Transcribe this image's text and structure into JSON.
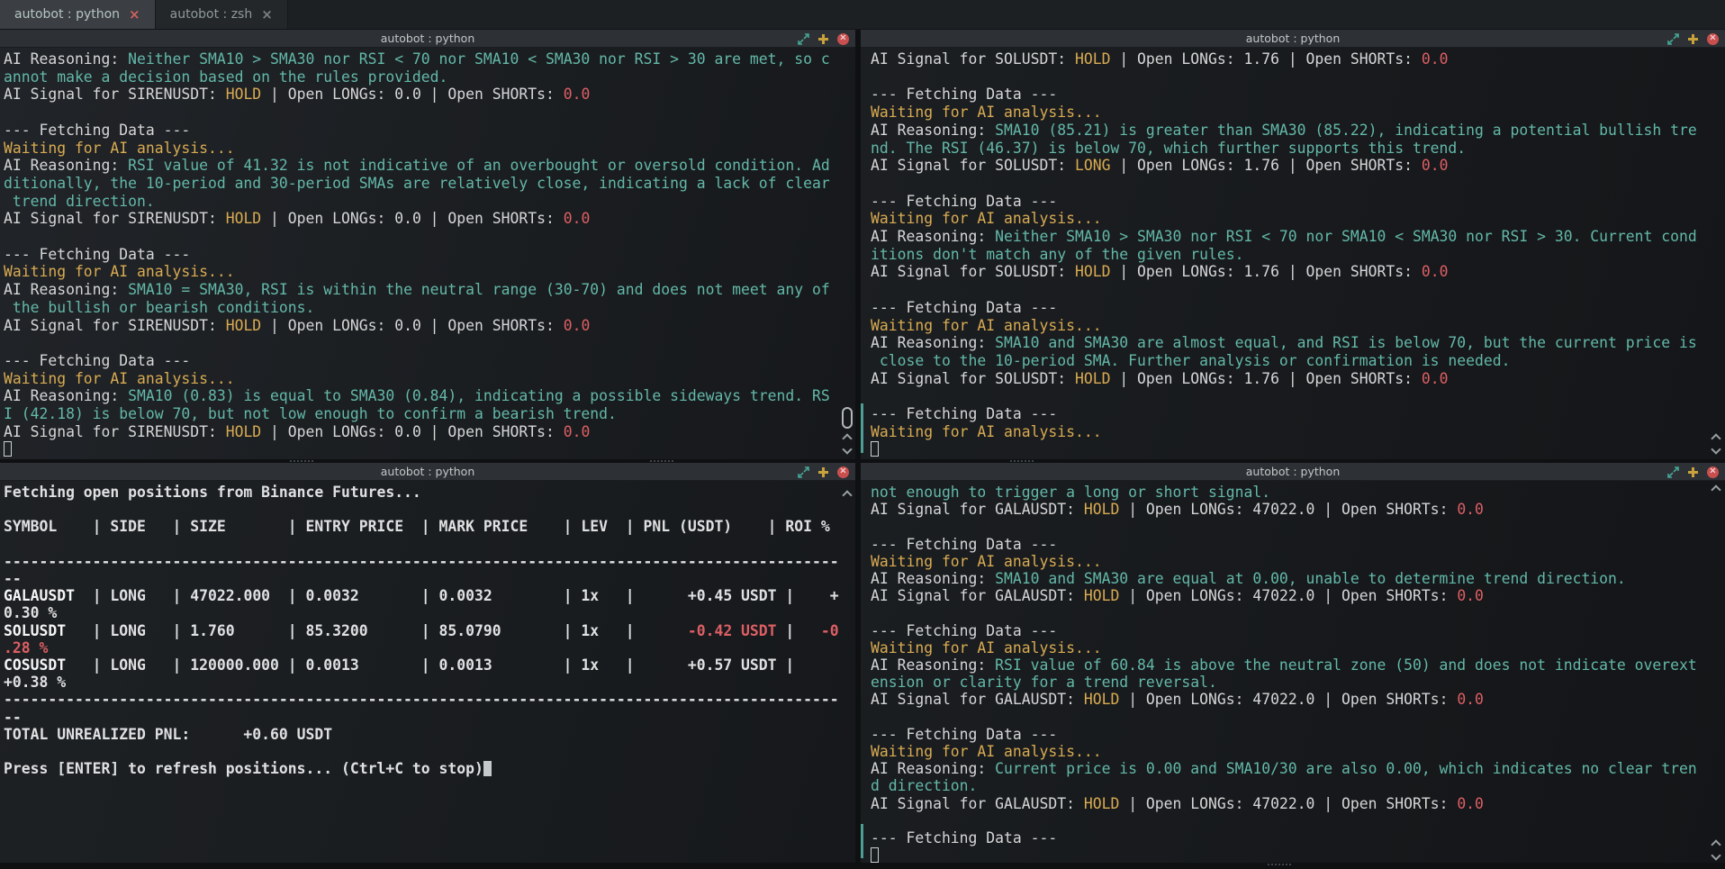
{
  "colors": {
    "teal": "#63b8a9",
    "gold": "#d9ab52",
    "red": "#dd5f64",
    "default_text": "#d5d6d6",
    "bold_text": "#dfe0e1",
    "titlebar_bg": "#2d3034",
    "tab_active_bg": "#3b3f43",
    "close_button": "#c94f4f",
    "plus_icon": "#c9a23b",
    "maximize_icon": "#46a596"
  },
  "tabs": [
    {
      "label": "autobot : python",
      "close": "×",
      "active": true
    },
    {
      "label": "autobot : zsh",
      "close": "×",
      "active": false
    }
  ],
  "panes": {
    "top_left": {
      "title": "autobot : python",
      "lines": [
        [
          {
            "t": "AI Reasoning: ",
            "c": "fg"
          },
          {
            "t": "Neither SMA10 > SMA30 nor RSI < 70 nor SMA10 < SMA30 nor RSI > 30 are met, so c",
            "c": "tl"
          }
        ],
        [
          {
            "t": "annot make a decision based on the rules provided.",
            "c": "tl"
          }
        ],
        [
          {
            "t": "AI Signal for SIRENUSDT: ",
            "c": "fg"
          },
          {
            "t": "HOLD",
            "c": "yl"
          },
          {
            "t": " | Open LONGs: 0.0 | Open SHORTs: ",
            "c": "fg"
          },
          {
            "t": "0.0",
            "c": "rd"
          }
        ],
        [],
        [
          {
            "t": "--- Fetching Data ---",
            "c": "fg"
          }
        ],
        [
          {
            "t": "Waiting for AI analysis...",
            "c": "yl"
          }
        ],
        [
          {
            "t": "AI Reasoning: ",
            "c": "fg"
          },
          {
            "t": "RSI value of 41.32 is not indicative of an overbought or oversold condition. Ad",
            "c": "tl"
          }
        ],
        [
          {
            "t": "ditionally, the 10-period and 30-period SMAs are relatively close, indicating a lack of clear",
            "c": "tl"
          }
        ],
        [
          {
            "t": " trend direction.",
            "c": "tl"
          }
        ],
        [
          {
            "t": "AI Signal for SIRENUSDT: ",
            "c": "fg"
          },
          {
            "t": "HOLD",
            "c": "yl"
          },
          {
            "t": " | Open LONGs: 0.0 | Open SHORTs: ",
            "c": "fg"
          },
          {
            "t": "0.0",
            "c": "rd"
          }
        ],
        [],
        [
          {
            "t": "--- Fetching Data ---",
            "c": "fg"
          }
        ],
        [
          {
            "t": "Waiting for AI analysis...",
            "c": "yl"
          }
        ],
        [
          {
            "t": "AI Reasoning: ",
            "c": "fg"
          },
          {
            "t": "SMA10 = SMA30, RSI is within the neutral range (30-70) and does not meet any of",
            "c": "tl"
          }
        ],
        [
          {
            "t": " the bullish or bearish conditions.",
            "c": "tl"
          }
        ],
        [
          {
            "t": "AI Signal for SIRENUSDT: ",
            "c": "fg"
          },
          {
            "t": "HOLD",
            "c": "yl"
          },
          {
            "t": " | Open LONGs: 0.0 | Open SHORTs: ",
            "c": "fg"
          },
          {
            "t": "0.0",
            "c": "rd"
          }
        ],
        [],
        [
          {
            "t": "--- Fetching Data ---",
            "c": "fg"
          }
        ],
        [
          {
            "t": "Waiting for AI analysis...",
            "c": "yl"
          }
        ],
        [
          {
            "t": "AI Reasoning: ",
            "c": "fg"
          },
          {
            "t": "SMA10 (0.83) is equal to SMA30 (0.84), indicating a possible sideways trend. RS",
            "c": "tl"
          }
        ],
        [
          {
            "t": "I (42.18) is below 70, but not low enough to confirm a bearish trend.",
            "c": "tl"
          }
        ],
        [
          {
            "t": "AI Signal for SIRENUSDT: ",
            "c": "fg"
          },
          {
            "t": "HOLD",
            "c": "yl"
          },
          {
            "t": " | Open LONGs: 0.0 | Open SHORTs: ",
            "c": "fg"
          },
          {
            "t": "0.0",
            "c": "rd"
          }
        ],
        [
          {
            "t": "",
            "c": "curh"
          }
        ]
      ]
    },
    "top_right": {
      "title": "autobot : python",
      "lines": [
        [
          {
            "t": "AI Signal for SOLUSDT: ",
            "c": "fg"
          },
          {
            "t": "HOLD",
            "c": "yl"
          },
          {
            "t": " | Open LONGs: 1.76 | Open SHORTs: ",
            "c": "fg"
          },
          {
            "t": "0.0",
            "c": "rd"
          }
        ],
        [],
        [
          {
            "t": "--- Fetching Data ---",
            "c": "fg"
          }
        ],
        [
          {
            "t": "Waiting for AI analysis...",
            "c": "yl"
          }
        ],
        [
          {
            "t": "AI Reasoning: ",
            "c": "fg"
          },
          {
            "t": "SMA10 (85.21) is greater than SMA30 (85.22), indicating a potential bullish tre",
            "c": "tl"
          }
        ],
        [
          {
            "t": "nd. The RSI (46.37) is below 70, which further supports this trend.",
            "c": "tl"
          }
        ],
        [
          {
            "t": "AI Signal for SOLUSDT: ",
            "c": "fg"
          },
          {
            "t": "LONG",
            "c": "yl"
          },
          {
            "t": " | Open LONGs: 1.76 | Open SHORTs: ",
            "c": "fg"
          },
          {
            "t": "0.0",
            "c": "rd"
          }
        ],
        [],
        [
          {
            "t": "--- Fetching Data ---",
            "c": "fg"
          }
        ],
        [
          {
            "t": "Waiting for AI analysis...",
            "c": "yl"
          }
        ],
        [
          {
            "t": "AI Reasoning: ",
            "c": "fg"
          },
          {
            "t": "Neither SMA10 > SMA30 nor RSI < 70 nor SMA10 < SMA30 nor RSI > 30. Current cond",
            "c": "tl"
          }
        ],
        [
          {
            "t": "itions don't match any of the given rules.",
            "c": "tl"
          }
        ],
        [
          {
            "t": "AI Signal for SOLUSDT: ",
            "c": "fg"
          },
          {
            "t": "HOLD",
            "c": "yl"
          },
          {
            "t": " | Open LONGs: 1.76 | Open SHORTs: ",
            "c": "fg"
          },
          {
            "t": "0.0",
            "c": "rd"
          }
        ],
        [],
        [
          {
            "t": "--- Fetching Data ---",
            "c": "fg"
          }
        ],
        [
          {
            "t": "Waiting for AI analysis...",
            "c": "yl"
          }
        ],
        [
          {
            "t": "AI Reasoning: ",
            "c": "fg"
          },
          {
            "t": "SMA10 and SMA30 are almost equal, and RSI is below 70, but the current price is",
            "c": "tl"
          }
        ],
        [
          {
            "t": " close to the 10-period SMA. Further analysis or confirmation is needed.",
            "c": "tl"
          }
        ],
        [
          {
            "t": "AI Signal for SOLUSDT: ",
            "c": "fg"
          },
          {
            "t": "HOLD",
            "c": "yl"
          },
          {
            "t": " | Open LONGs: 1.76 | Open SHORTs: ",
            "c": "fg"
          },
          {
            "t": "0.0",
            "c": "rd"
          }
        ],
        [],
        [
          {
            "t": "--- Fetching Data ---",
            "c": "fg"
          }
        ],
        [
          {
            "t": "Waiting for AI analysis...",
            "c": "yl"
          }
        ],
        [
          {
            "t": "",
            "c": "curh"
          }
        ]
      ]
    },
    "bottom_left": {
      "title": "autobot : python",
      "lines": [
        [
          {
            "t": "Fetching open positions from Binance Futures...",
            "c": "bd"
          }
        ],
        [],
        [
          {
            "t": "SYMBOL    | SIDE   | SIZE       | ENTRY PRICE  | MARK PRICE    | LEV  | PNL (USDT)    | ROI %",
            "c": "bd"
          }
        ],
        [],
        [
          {
            "t": "----------------------------------------------------------------------------------------------",
            "c": "bd"
          }
        ],
        [
          {
            "t": "--",
            "c": "bd"
          }
        ],
        [
          {
            "t": "GALAUSDT",
            "c": "bds"
          },
          {
            "t": "  | LONG   | 47022.000  | 0.0032       | 0.0032        | 1x   |      +0.45 USDT |    +",
            "c": "bd"
          }
        ],
        [
          {
            "t": "0.30 %",
            "c": "bd"
          }
        ],
        [
          {
            "t": "SOLUSDT",
            "c": "bds"
          },
          {
            "t": "   | LONG   | 1.760      | 85.3200      | 85.0790       | 1x   |      ",
            "c": "bd"
          },
          {
            "t": "-0.42 USDT",
            "c": "rdb"
          },
          {
            "t": " |   ",
            "c": "bd"
          },
          {
            "t": "-0",
            "c": "rdb"
          }
        ],
        [
          {
            "t": ".28 %",
            "c": "rdb"
          }
        ],
        [
          {
            "t": "COSUSDT",
            "c": "bds"
          },
          {
            "t": "   | LONG   | 120000.000 | 0.0013       | 0.0013        | 1x   |      +0.57 USDT |     ",
            "c": "bd"
          }
        ],
        [
          {
            "t": "+0.38 %",
            "c": "bd"
          }
        ],
        [
          {
            "t": "----------------------------------------------------------------------------------------------",
            "c": "bd"
          }
        ],
        [
          {
            "t": "--",
            "c": "bd"
          }
        ],
        [
          {
            "t": "TOTAL UNREALIZED PNL:      +0.60 USDT",
            "c": "bd"
          }
        ],
        [],
        [
          {
            "t": "Press [ENTER] to refresh positions... (Ctrl+C to stop)",
            "c": "bd"
          },
          {
            "t": "",
            "c": "curf"
          }
        ]
      ]
    },
    "bottom_right": {
      "title": "autobot : python",
      "lines": [
        [
          {
            "t": "not enough to trigger a long or short signal.",
            "c": "tl"
          }
        ],
        [
          {
            "t": "AI Signal for GALAUSDT: ",
            "c": "fg"
          },
          {
            "t": "HOLD",
            "c": "yl"
          },
          {
            "t": " | Open LONGs: 47022.0 | Open SHORTs: ",
            "c": "fg"
          },
          {
            "t": "0.0",
            "c": "rd"
          }
        ],
        [],
        [
          {
            "t": "--- Fetching Data ---",
            "c": "fg"
          }
        ],
        [
          {
            "t": "Waiting for AI analysis...",
            "c": "yl"
          }
        ],
        [
          {
            "t": "AI Reasoning: ",
            "c": "fg"
          },
          {
            "t": "SMA10 and SMA30 are equal at 0.00, unable to determine trend direction.",
            "c": "tl"
          }
        ],
        [
          {
            "t": "AI Signal for GALAUSDT: ",
            "c": "fg"
          },
          {
            "t": "HOLD",
            "c": "yl"
          },
          {
            "t": " | Open LONGs: 47022.0 | Open SHORTs: ",
            "c": "fg"
          },
          {
            "t": "0.0",
            "c": "rd"
          }
        ],
        [],
        [
          {
            "t": "--- Fetching Data ---",
            "c": "fg"
          }
        ],
        [
          {
            "t": "Waiting for AI analysis...",
            "c": "yl"
          }
        ],
        [
          {
            "t": "AI Reasoning: ",
            "c": "fg"
          },
          {
            "t": "RSI value of 60.84 is above the neutral zone (50) and does not indicate overext",
            "c": "tl"
          }
        ],
        [
          {
            "t": "ension or clarity for a trend reversal.",
            "c": "tl"
          }
        ],
        [
          {
            "t": "AI Signal for GALAUSDT: ",
            "c": "fg"
          },
          {
            "t": "HOLD",
            "c": "yl"
          },
          {
            "t": " | Open LONGs: 47022.0 | Open SHORTs: ",
            "c": "fg"
          },
          {
            "t": "0.0",
            "c": "rd"
          }
        ],
        [],
        [
          {
            "t": "--- Fetching Data ---",
            "c": "fg"
          }
        ],
        [
          {
            "t": "Waiting for AI analysis...",
            "c": "yl"
          }
        ],
        [
          {
            "t": "AI Reasoning: ",
            "c": "fg"
          },
          {
            "t": "Current price is 0.00 and SMA10/30 are also 0.00, which indicates no clear tren",
            "c": "tl"
          }
        ],
        [
          {
            "t": "d direction.",
            "c": "tl"
          }
        ],
        [
          {
            "t": "AI Signal for GALAUSDT: ",
            "c": "fg"
          },
          {
            "t": "HOLD",
            "c": "yl"
          },
          {
            "t": " | Open LONGs: 47022.0 | Open SHORTs: ",
            "c": "fg"
          },
          {
            "t": "0.0",
            "c": "rd"
          }
        ],
        [],
        [
          {
            "t": "--- Fetching Data ---",
            "c": "fg"
          }
        ],
        [
          {
            "t": "",
            "c": "curh"
          }
        ]
      ]
    }
  }
}
